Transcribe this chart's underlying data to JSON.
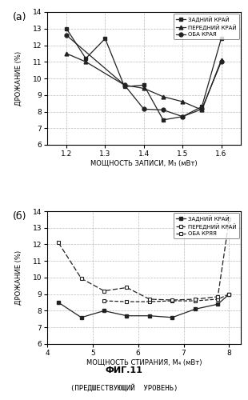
{
  "top": {
    "x": [
      1.2,
      1.25,
      1.3,
      1.35,
      1.4,
      1.45,
      1.5,
      1.55,
      1.6
    ],
    "zadny": [
      13.0,
      11.2,
      12.4,
      9.5,
      9.6,
      7.5,
      7.7,
      8.3,
      12.4
    ],
    "peredny": [
      11.5,
      11.0,
      null,
      9.6,
      9.4,
      8.9,
      8.6,
      8.1,
      11.1
    ],
    "oba": [
      12.6,
      null,
      null,
      9.6,
      8.15,
      8.1,
      7.7,
      8.15,
      11.0
    ],
    "xlabel": "МОЩНОСТЬ ЗАПИСИ, M₃ (мВт)",
    "ylabel": "ДРОЖАНИЕ (%)",
    "ylim": [
      6,
      14
    ],
    "xlim": [
      1.15,
      1.65
    ],
    "xticks": [
      1.2,
      1.3,
      1.4,
      1.5,
      1.6
    ],
    "yticks": [
      6,
      7,
      8,
      9,
      10,
      11,
      12,
      13,
      14
    ],
    "label_a": "(a)",
    "legend": [
      "ЗАДНИЙ КРАЙ",
      "ПЕРЕДНИЙ КРАЙ",
      "ОБА КРАЯ"
    ]
  },
  "bottom": {
    "x": [
      4.25,
      4.75,
      5.25,
      5.75,
      6.25,
      6.75,
      7.25,
      7.75,
      8.0
    ],
    "zadny": [
      8.5,
      7.6,
      8.0,
      7.7,
      7.7,
      7.6,
      8.1,
      8.4,
      9.0
    ],
    "peredny": [
      null,
      null,
      8.6,
      8.55,
      8.55,
      8.6,
      8.6,
      8.7,
      9.0
    ],
    "oba": [
      12.1,
      9.95,
      9.2,
      9.4,
      8.7,
      8.65,
      8.7,
      8.85,
      13.5
    ],
    "xlabel": "МОЩНОСТЬ СТИРАНИЯ, M₄ (мВт)",
    "ylabel": "ДРОЖАНИЕ (%)",
    "ylim": [
      6,
      14
    ],
    "xlim": [
      4.0,
      8.25
    ],
    "xticks": [
      4,
      5,
      6,
      7,
      8
    ],
    "yticks": [
      6,
      7,
      8,
      9,
      10,
      11,
      12,
      13,
      14
    ],
    "label_b": "(б)",
    "legend": [
      "ЗАДНИЙ КРАЙ",
      "ПЕРЕДНИЙ КРАЙ",
      "ОБА КРЯЯ"
    ]
  },
  "fig_title": "ФИГ.11",
  "fig_subtitle": "(ПРЕДШЕСТВУЮЩИЙ  УРОВЕНЬ)"
}
